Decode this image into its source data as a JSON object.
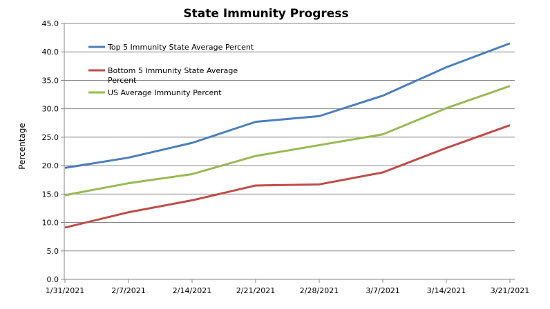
{
  "chart_data": {
    "type": "line",
    "title": "State Immunity Progress",
    "xlabel": "",
    "ylabel": "Percentage",
    "ylim": [
      0,
      45
    ],
    "yticks": [
      "0.0",
      "5.0",
      "10.0",
      "15.0",
      "20.0",
      "25.0",
      "30.0",
      "35.0",
      "40.0",
      "45.0"
    ],
    "grid": true,
    "legend": "top-left",
    "categories": [
      "1/31/2021",
      "2/7/2021",
      "2/14/2021",
      "2/21/2021",
      "2/28/2021",
      "3/7/2021",
      "3/14/2021",
      "3/21/2021"
    ],
    "series": [
      {
        "name": "Top 5 Immunity State Average Percent",
        "color": "#4A7EBB",
        "values": [
          19.6,
          21.4,
          24.0,
          27.7,
          28.7,
          32.3,
          37.3,
          41.5
        ]
      },
      {
        "name": "Bottom 5 Immunity State Average Percent",
        "color": "#BE4B48",
        "values": [
          9.1,
          11.8,
          13.9,
          16.5,
          16.7,
          18.8,
          23.1,
          27.1
        ]
      },
      {
        "name": "US Average Immunity Percent",
        "color": "#98B954",
        "values": [
          14.8,
          16.9,
          18.5,
          21.7,
          23.6,
          25.5,
          30.1,
          34.0
        ]
      }
    ]
  }
}
